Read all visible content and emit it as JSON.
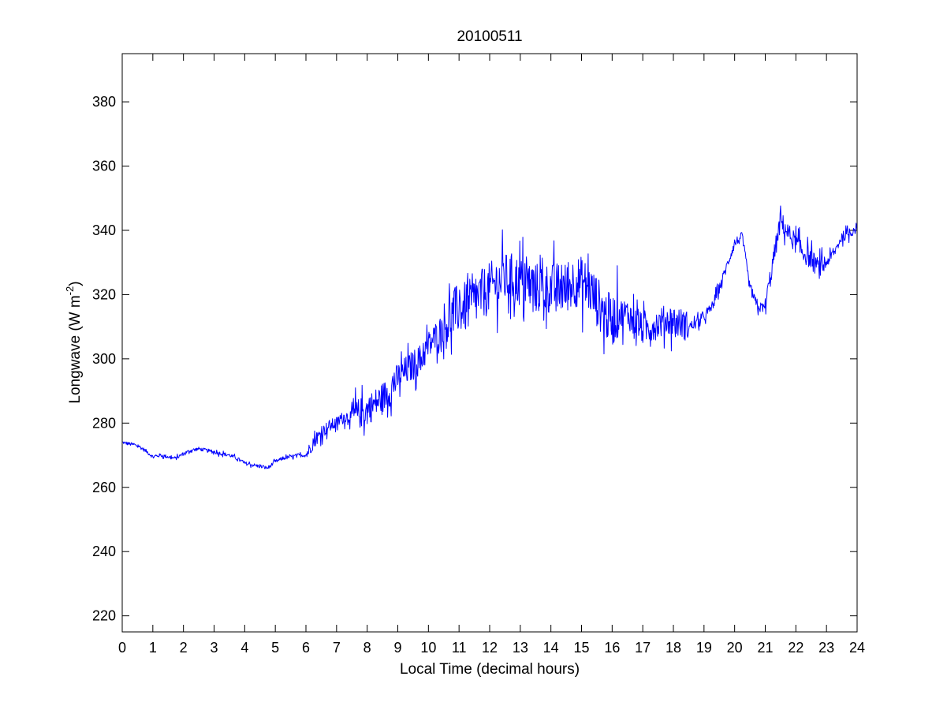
{
  "chart_data": {
    "type": "line",
    "title": "20100511",
    "xlabel": "Local Time (decimal hours)",
    "ylabel": {
      "main": "Longwave (W m",
      "superscript": "-2",
      "close": ")"
    },
    "xlim": [
      0,
      24
    ],
    "ylim": [
      215,
      395
    ],
    "xticks": [
      0,
      1,
      2,
      3,
      4,
      5,
      6,
      7,
      8,
      9,
      10,
      11,
      12,
      13,
      14,
      15,
      16,
      17,
      18,
      19,
      20,
      21,
      22,
      23,
      24
    ],
    "yticks": [
      220,
      240,
      260,
      280,
      300,
      320,
      340,
      360,
      380
    ],
    "grid": false,
    "legend": "none",
    "line_color": "#0000ff",
    "series": [
      {
        "x": [
          0,
          0.25,
          0.5,
          0.75,
          1.0,
          1.25,
          1.5,
          1.75,
          2.0,
          2.25,
          2.5,
          2.75,
          3.0,
          3.25,
          3.5,
          3.75,
          4.0,
          4.25,
          4.5,
          4.75,
          5.0,
          5.25,
          5.5,
          5.75,
          6.0,
          6.25,
          6.5,
          6.75,
          7.0,
          7.25,
          7.5,
          7.75,
          8.0,
          8.25,
          8.5,
          8.75,
          9.0,
          9.25,
          9.5,
          9.75,
          10.0,
          10.25,
          10.5,
          10.75,
          11.0,
          11.25,
          11.5,
          11.75,
          12.0,
          12.25,
          12.5,
          12.75,
          13.0,
          13.25,
          13.5,
          13.75,
          14.0,
          14.25,
          14.5,
          14.75,
          15.0,
          15.25,
          15.5,
          15.75,
          16.0,
          16.25,
          16.5,
          16.75,
          17.0,
          17.25,
          17.5,
          17.75,
          18.0,
          18.25,
          18.5,
          18.75,
          19.0,
          19.25,
          19.5,
          19.75,
          20.0,
          20.25,
          20.5,
          20.75,
          21.0,
          21.25,
          21.5,
          21.75,
          22.0,
          22.25,
          22.5,
          22.75,
          23.0,
          23.25,
          23.5,
          23.75,
          24.0
        ],
        "y": [
          274,
          273.5,
          273,
          271.5,
          269.5,
          270,
          269.5,
          269,
          270.5,
          271.5,
          272,
          271.5,
          271,
          270.5,
          270,
          269,
          267.5,
          267,
          266.5,
          266,
          268,
          269,
          269.5,
          270,
          270,
          274,
          277,
          279,
          280,
          282,
          282,
          283,
          284,
          286,
          288,
          290,
          294,
          296,
          298,
          300,
          304,
          307,
          310,
          313,
          316,
          316,
          318,
          320,
          322,
          324,
          325,
          325,
          324,
          323,
          322,
          322,
          322,
          322,
          322,
          324,
          324,
          322,
          318,
          314,
          312,
          314,
          314,
          312,
          309,
          310,
          311,
          312,
          312,
          311,
          310,
          311,
          313,
          316,
          322,
          329,
          336,
          338,
          322,
          316,
          316,
          330,
          343,
          339,
          336,
          333,
          331,
          328,
          330,
          333,
          338,
          339,
          341
        ]
      }
    ]
  }
}
